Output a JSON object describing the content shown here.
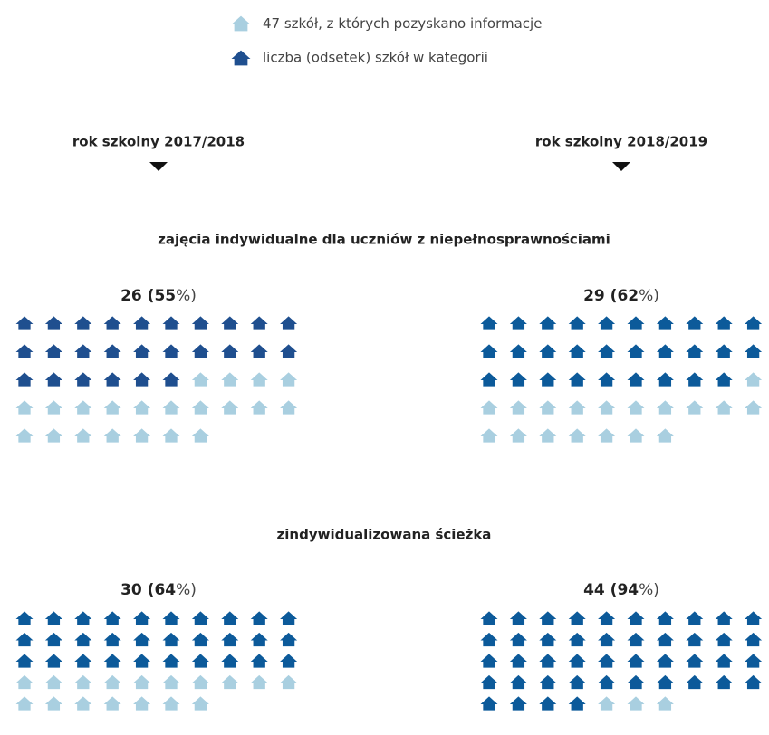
{
  "legend": {
    "total": 47,
    "total_text": " szkół, z których pozyskano informacje",
    "category_text": "liczba (odsetek) szkół w kategorii"
  },
  "years": [
    "rok szkolny 2017/2018",
    "rok szkolny 2018/2019"
  ],
  "paren_open": " (",
  "paren_close": ")",
  "percent_sign": "%",
  "light_color": "#a9cfe0",
  "legend_dark_color": "#1f4f8f",
  "sections": [
    {
      "title": "zajęcia indywidualne dla uczniów z niepełnosprawnościami",
      "panels": [
        {
          "value": 26,
          "percent": 55,
          "color": "#1f4f8f"
        },
        {
          "value": 29,
          "percent": 62,
          "color": "#0c5a9a"
        }
      ]
    },
    {
      "title": "zindywidualizowana ścieżka",
      "panels": [
        {
          "value": 30,
          "percent": 64,
          "color": "#0c5a9a"
        },
        {
          "value": 44,
          "percent": 94,
          "color": "#0c5a9a"
        }
      ]
    }
  ]
}
